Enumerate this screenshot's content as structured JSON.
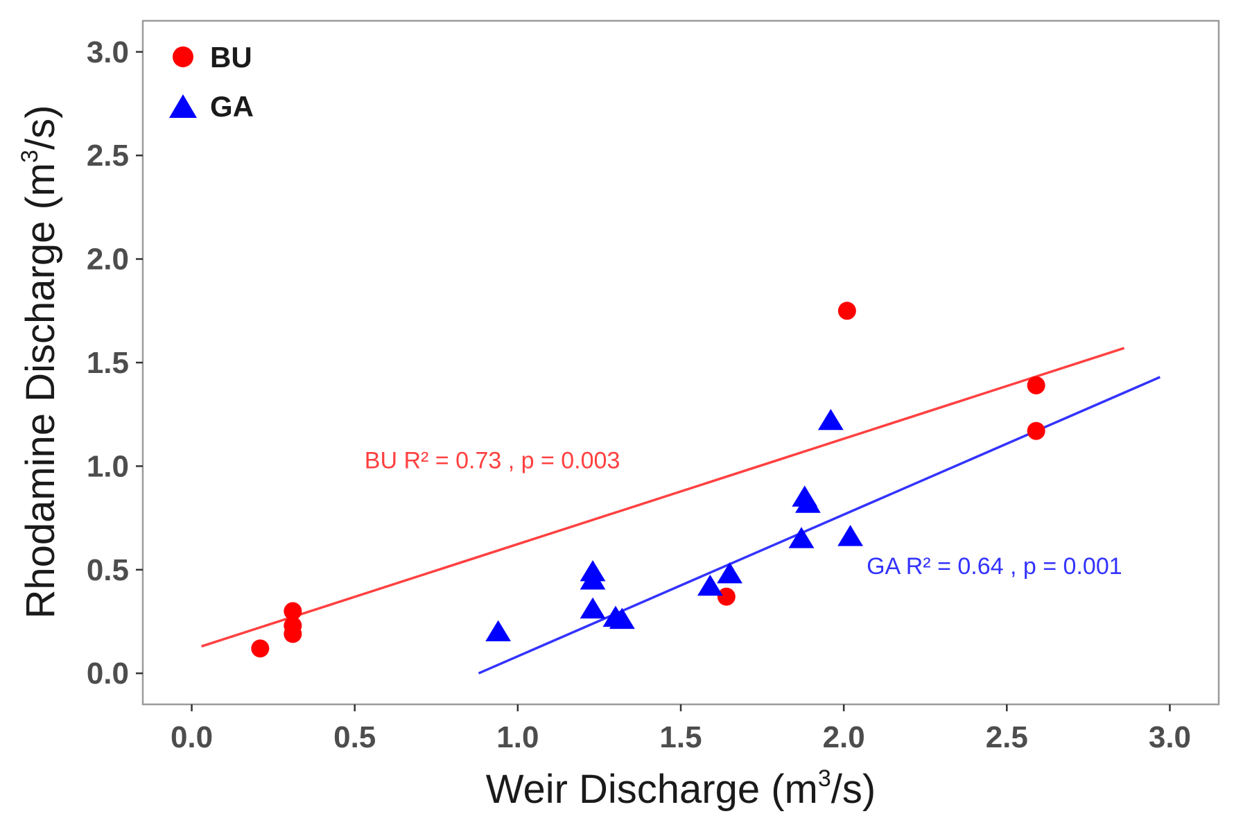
{
  "chart_data": {
    "type": "scatter",
    "title": "",
    "xlabel": {
      "main": "Weir Discharge (m",
      "sup": "3",
      "tail": "/s)"
    },
    "ylabel": {
      "main": "Rhodamine Discharge (m",
      "sup": "3",
      "tail": "/s)"
    },
    "xlim": [
      -0.15,
      3.15
    ],
    "ylim": [
      -0.15,
      3.15
    ],
    "xticks": [
      "0.0",
      "0.5",
      "1.0",
      "1.5",
      "2.0",
      "2.5",
      "3.0"
    ],
    "yticks": [
      "0.0",
      "0.5",
      "1.0",
      "1.5",
      "2.0",
      "2.5",
      "3.0"
    ],
    "grid": false,
    "legend_position": "top-left",
    "series": [
      {
        "name": "BU",
        "color": "#ff0000",
        "line_color": "#ff4040",
        "marker": "circle",
        "x": [
          0.21,
          0.31,
          0.31,
          0.31,
          1.64,
          2.01,
          2.59,
          2.59
        ],
        "y": [
          0.12,
          0.19,
          0.23,
          0.3,
          0.37,
          1.75,
          1.39,
          1.17
        ],
        "fit": {
          "x": [
            0.03,
            2.86
          ],
          "y": [
            0.13,
            1.57
          ]
        },
        "annotation": {
          "text": "BU  R² = 0.73 , p = 0.003",
          "x": 0.53,
          "y": 0.99
        }
      },
      {
        "name": "GA",
        "color": "#0000ff",
        "line_color": "#3333ff",
        "marker": "triangle",
        "x": [
          0.94,
          1.23,
          1.23,
          1.23,
          1.3,
          1.32,
          1.59,
          1.65,
          1.87,
          1.88,
          1.89,
          1.96,
          2.02
        ],
        "y": [
          0.2,
          0.49,
          0.45,
          0.31,
          0.27,
          0.26,
          0.42,
          0.48,
          0.65,
          0.85,
          0.82,
          1.22,
          0.66
        ],
        "fit": {
          "x": [
            0.88,
            2.97
          ],
          "y": [
            0.0,
            1.43
          ]
        },
        "annotation": {
          "text": "GA  R² = 0.64 , p = 0.001",
          "x": 2.07,
          "y": 0.48
        }
      }
    ]
  }
}
